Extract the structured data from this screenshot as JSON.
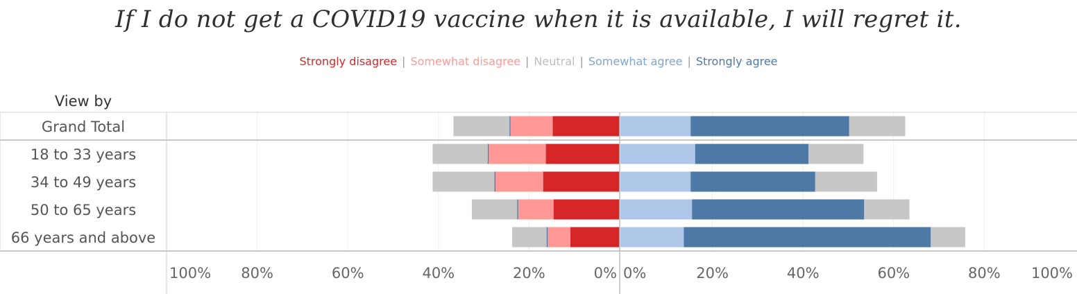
{
  "chart_data": {
    "type": "bar",
    "orientation": "horizontal",
    "stacked": "diverging",
    "title": "If I do not get a COVID19 vaccine when it is available, I will regret it.",
    "row_header": "View by",
    "categories": [
      "Grand Total",
      "18 to 33 years",
      "34 to 49 years",
      "50 to 65 years",
      "66 years and above"
    ],
    "series": [
      {
        "name": "Strongly disagree",
        "color": "#d62728",
        "side": "left",
        "values": [
          14.8,
          16.3,
          16.9,
          14.6,
          10.9
        ]
      },
      {
        "name": "Somewhat disagree",
        "color": "#ff9896",
        "side": "left",
        "values": [
          9.3,
          12.6,
          10.5,
          7.8,
          5.0
        ]
      },
      {
        "name": "Neutral",
        "color": "#c7c7c7",
        "side": "split",
        "values": [
          24.7,
          24.3,
          27.3,
          20.0,
          15.2
        ]
      },
      {
        "name": "Somewhat agree",
        "color": "#aec7e8",
        "side": "right",
        "values": [
          15.5,
          16.5,
          15.5,
          15.8,
          14.0
        ]
      },
      {
        "name": "Strongly agree",
        "color": "#4e79a7",
        "side": "right",
        "values": [
          35.0,
          25.0,
          27.5,
          38.0,
          54.5
        ]
      }
    ],
    "left_axis": {
      "ticks": [
        "100%",
        "80%",
        "60%",
        "40%",
        "20%",
        "0%"
      ],
      "range": [
        100,
        0
      ]
    },
    "right_axis": {
      "ticks": [
        "0%",
        "20%",
        "40%",
        "60%",
        "80%",
        "100%"
      ],
      "range": [
        0,
        100
      ]
    },
    "grid": true,
    "legend_placement": "top-center"
  }
}
